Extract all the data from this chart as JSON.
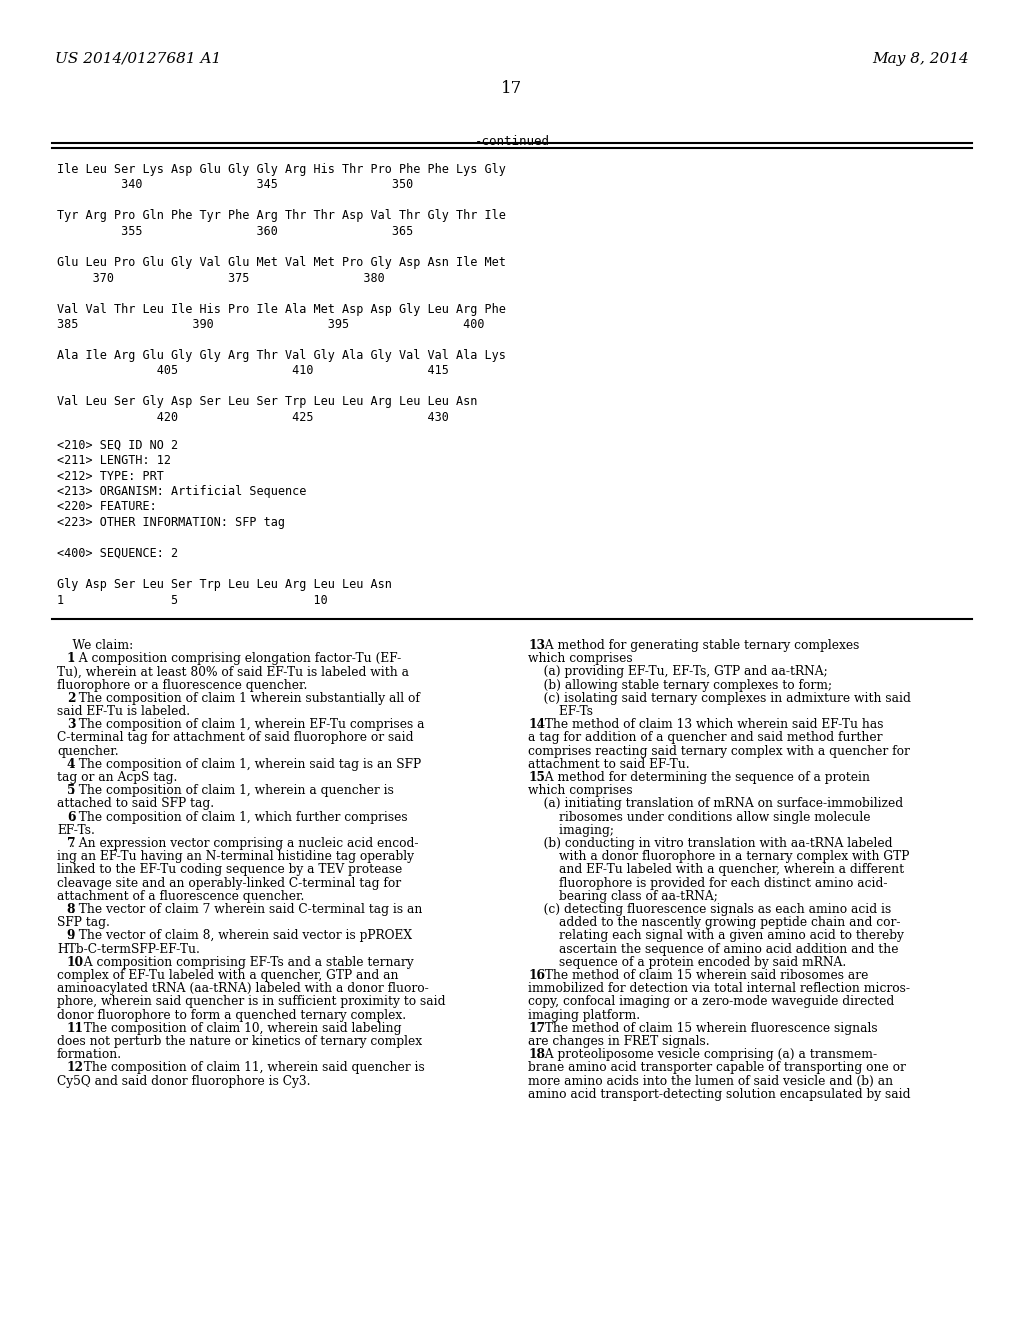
{
  "bg_color": "#ffffff",
  "header_left": "US 2014/0127681 A1",
  "header_right": "May 8, 2014",
  "page_number": "17",
  "continued_label": "-continued",
  "sequence_lines": [
    "Ile Leu Ser Lys Asp Glu Gly Gly Arg His Thr Pro Phe Phe Lys Gly",
    "         340                345                350",
    "",
    "Tyr Arg Pro Gln Phe Tyr Phe Arg Thr Thr Asp Val Thr Gly Thr Ile",
    "         355                360                365",
    "",
    "Glu Leu Pro Glu Gly Val Glu Met Val Met Pro Gly Asp Asn Ile Met",
    "     370                375                380",
    "",
    "Val Val Thr Leu Ile His Pro Ile Ala Met Asp Asp Gly Leu Arg Phe",
    "385                390                395                400",
    "",
    "Ala Ile Arg Glu Gly Gly Arg Thr Val Gly Ala Gly Val Val Ala Lys",
    "              405                410                415",
    "",
    "Val Leu Ser Gly Asp Ser Leu Ser Trp Leu Leu Arg Leu Leu Asn",
    "              420                425                430"
  ],
  "seq_info_lines": [
    "<210> SEQ ID NO 2",
    "<211> LENGTH: 12",
    "<212> TYPE: PRT",
    "<213> ORGANISM: Artificial Sequence",
    "<220> FEATURE:",
    "<223> OTHER INFORMATION: SFP tag",
    "",
    "<400> SEQUENCE: 2",
    "",
    "Gly Asp Ser Leu Ser Trp Leu Leu Arg Leu Leu Asn",
    "1               5                   10"
  ],
  "claims_left": [
    [
      "normal",
      "    We claim:"
    ],
    [
      "normal",
      "    1",
      ". A composition comprising elongation factor-Tu (EF-"
    ],
    [
      "normal",
      "Tu), wherein at least 80% of said EF-Tu is labeled with a"
    ],
    [
      "normal",
      "fluorophore or a fluorescence quencher."
    ],
    [
      "normal",
      "    2",
      ". The composition of claim 1 wherein substantially all of"
    ],
    [
      "normal",
      "said EF-Tu is labeled."
    ],
    [
      "normal",
      "    3",
      ". The composition of claim 1, wherein EF-Tu comprises a"
    ],
    [
      "normal",
      "C-terminal tag for attachment of said fluorophore or said"
    ],
    [
      "normal",
      "quencher."
    ],
    [
      "normal",
      "    4",
      ". The composition of claim 1, wherein said tag is an SFP"
    ],
    [
      "normal",
      "tag or an AcpS tag."
    ],
    [
      "normal",
      "    5",
      ". The composition of claim 1, wherein a quencher is"
    ],
    [
      "normal",
      "attached to said SFP tag."
    ],
    [
      "normal",
      "    6",
      ". The composition of claim 1, which further comprises"
    ],
    [
      "normal",
      "EF-Ts."
    ],
    [
      "normal",
      "    7",
      ". An expression vector comprising a nucleic acid encod-"
    ],
    [
      "normal",
      "ing an EF-Tu having an N-terminal histidine tag operably"
    ],
    [
      "normal",
      "linked to the EF-Tu coding sequence by a TEV protease"
    ],
    [
      "normal",
      "cleavage site and an operably-linked C-terminal tag for"
    ],
    [
      "normal",
      "attachment of a fluorescence quencher."
    ],
    [
      "normal",
      "    8",
      ". The vector of claim 7 wherein said C-terminal tag is an"
    ],
    [
      "normal",
      "SFP tag."
    ],
    [
      "normal",
      "    9",
      ". The vector of claim 8, wherein said vector is pPROEX"
    ],
    [
      "normal",
      "HTb-C-termSFP-EF-Tu."
    ],
    [
      "normal",
      "    10",
      ". A composition comprising EF-Ts and a stable ternary"
    ],
    [
      "normal",
      "complex of EF-Tu labeled with a quencher, GTP and an"
    ],
    [
      "normal",
      "aminoacylated tRNA (aa-tRNA) labeled with a donor fluoro-"
    ],
    [
      "normal",
      "phore, wherein said quencher is in sufficient proximity to said"
    ],
    [
      "normal",
      "donor fluorophore to form a quenched ternary complex."
    ],
    [
      "normal",
      "    11",
      ". The composition of claim 10, wherein said labeling"
    ],
    [
      "normal",
      "does not perturb the nature or kinetics of ternary complex"
    ],
    [
      "normal",
      "formation."
    ],
    [
      "normal",
      "    12",
      ". The composition of claim 11, wherein said quencher is"
    ],
    [
      "normal",
      "Cy5Q and said donor fluorophore is Cy3."
    ]
  ],
  "claims_right": [
    [
      "normal",
      "13",
      ". A method for generating stable ternary complexes"
    ],
    [
      "normal",
      "which comprises"
    ],
    [
      "normal",
      "    (a) providing EF-Tu, EF-Ts, GTP and aa-tRNA;"
    ],
    [
      "normal",
      "    (b) allowing stable ternary complexes to form;"
    ],
    [
      "normal",
      "    (c) isolating said ternary complexes in admixture with said"
    ],
    [
      "normal",
      "        EF-Ts"
    ],
    [
      "normal",
      "14",
      ". The method of claim 13 which wherein said EF-Tu has"
    ],
    [
      "normal",
      "a tag for addition of a quencher and said method further"
    ],
    [
      "normal",
      "comprises reacting said ternary complex with a quencher for"
    ],
    [
      "normal",
      "attachment to said EF-Tu."
    ],
    [
      "normal",
      "15",
      ". A method for determining the sequence of a protein"
    ],
    [
      "normal",
      "which comprises"
    ],
    [
      "normal",
      "    (a) initiating translation of mRNA on surface-immobilized"
    ],
    [
      "normal",
      "        ribosomes under conditions allow single molecule"
    ],
    [
      "normal",
      "        imaging;"
    ],
    [
      "normal",
      "    (b) conducting in vitro translation with aa-tRNA labeled"
    ],
    [
      "normal",
      "        with a donor fluorophore in a ternary complex with GTP"
    ],
    [
      "normal",
      "        and EF-Tu labeled with a quencher, wherein a different"
    ],
    [
      "normal",
      "        fluorophore is provided for each distinct amino acid-"
    ],
    [
      "normal",
      "        bearing class of aa-tRNA;"
    ],
    [
      "normal",
      "    (c) detecting fluorescence signals as each amino acid is"
    ],
    [
      "normal",
      "        added to the nascently growing peptide chain and cor-"
    ],
    [
      "normal",
      "        relating each signal with a given amino acid to thereby"
    ],
    [
      "normal",
      "        ascertain the sequence of amino acid addition and the"
    ],
    [
      "normal",
      "        sequence of a protein encoded by said mRNA."
    ],
    [
      "normal",
      "16",
      ". The method of claim 15 wherein said ribosomes are"
    ],
    [
      "normal",
      "immobilized for detection via total internal reflection micros-"
    ],
    [
      "normal",
      "copy, confocal imaging or a zero-mode waveguide directed"
    ],
    [
      "normal",
      "imaging platform."
    ],
    [
      "normal",
      "17",
      ". The method of claim 15 wherein fluorescence signals"
    ],
    [
      "normal",
      "are changes in FRET signals."
    ],
    [
      "normal",
      "18",
      ". A proteoliposome vesicle comprising (a) a transmem-"
    ],
    [
      "normal",
      "brane amino acid transporter capable of transporting one or"
    ],
    [
      "normal",
      "more amino acids into the lumen of said vesicle and (b) an"
    ],
    [
      "normal",
      "amino acid transport-detecting solution encapsulated by said"
    ]
  ]
}
